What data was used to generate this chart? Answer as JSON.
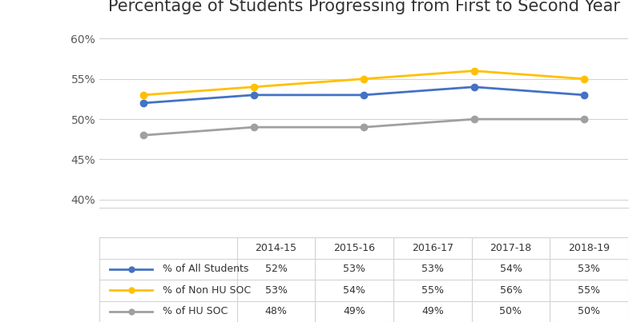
{
  "title": "Percentage of Students Progressing from First to Second Year",
  "years": [
    "2014-15",
    "2015-16",
    "2016-17",
    "2017-18",
    "2018-19"
  ],
  "series": [
    {
      "label": "% of All Students",
      "values": [
        52,
        53,
        53,
        54,
        53
      ],
      "color": "#4472C4",
      "marker": "o"
    },
    {
      "label": "% of Non HU SOC",
      "values": [
        53,
        54,
        55,
        56,
        55
      ],
      "color": "#FFC000",
      "marker": "o"
    },
    {
      "label": "% of HU SOC",
      "values": [
        48,
        49,
        49,
        50,
        50
      ],
      "color": "#A0A0A0",
      "marker": "o"
    }
  ],
  "ylim": [
    39,
    62
  ],
  "yticks": [
    40,
    45,
    50,
    55,
    60
  ],
  "ytick_labels": [
    "40%",
    "45%",
    "50%",
    "55%",
    "60%"
  ],
  "background_color": "#ffffff",
  "grid_color": "#D3D3D3",
  "title_fontsize": 15,
  "axis_label_color": "#595959",
  "line_width": 2.0,
  "marker_size": 6
}
